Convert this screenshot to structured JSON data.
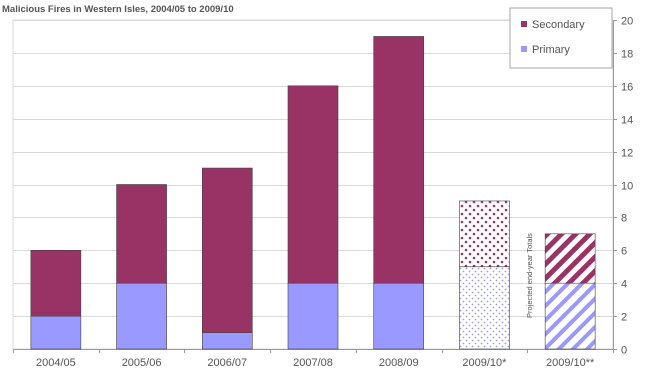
{
  "chart_data": {
    "type": "bar",
    "stacked": true,
    "title": "Malicious Fires in Western Isles, 2004/05 to 2009/10",
    "categories": [
      "2004/05",
      "2005/06",
      "2006/07",
      "2007/08",
      "2008/09",
      "2009/10*",
      "2009/10**"
    ],
    "series": [
      {
        "name": "Primary",
        "values": [
          2,
          4,
          1,
          4,
          4,
          5,
          4
        ],
        "color": "#9999ff"
      },
      {
        "name": "Secondary",
        "values": [
          4,
          6,
          10,
          12,
          15,
          4,
          3
        ],
        "color": "#993366"
      }
    ],
    "bar_styles": [
      "solid",
      "solid",
      "solid",
      "solid",
      "solid",
      "dotted",
      "diagonal-stripes"
    ],
    "ylim": [
      0,
      20
    ],
    "yticks": [
      0,
      2,
      4,
      6,
      8,
      10,
      12,
      14,
      16,
      18,
      20
    ],
    "y_axis_side": "right",
    "xlabel": "",
    "ylabel": "",
    "grid": true,
    "legend": {
      "position": "top-right",
      "order": [
        "Secondary",
        "Primary"
      ]
    },
    "annotation": "Projected end-year  Totals"
  }
}
